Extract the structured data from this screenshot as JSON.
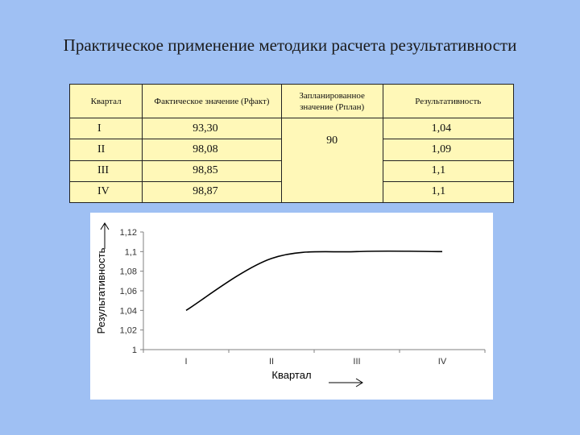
{
  "title": "Практическое применение методики расчета результативности",
  "table": {
    "headers": [
      "Квартал",
      "Фактическое значение (Рфакт)",
      "Запланированное значение (Рплан)",
      "Результативность"
    ],
    "rows": [
      {
        "quarter": "I",
        "fact": "93,30",
        "result": "1,04"
      },
      {
        "quarter": "II",
        "fact": "98,08",
        "result": "1,09"
      },
      {
        "quarter": "III",
        "fact": "98,85",
        "result": "1,1"
      },
      {
        "quarter": "IV",
        "fact": "98,87",
        "result": "1,1"
      }
    ],
    "plan": "90"
  },
  "chart_data": {
    "type": "line",
    "categories": [
      "I",
      "II",
      "III",
      "IV"
    ],
    "series": [
      {
        "values": [
          1.04,
          1.093,
          1.1,
          1.1
        ]
      }
    ],
    "xlabel": "Квартал",
    "ylabel": "Результативность",
    "ylim": [
      1,
      1.12
    ],
    "yticks": [
      "1",
      "1,02",
      "1,04",
      "1,06",
      "1,08",
      "1,1",
      "1,12"
    ],
    "grid": false,
    "smooth": true,
    "line_color": "#000000"
  }
}
